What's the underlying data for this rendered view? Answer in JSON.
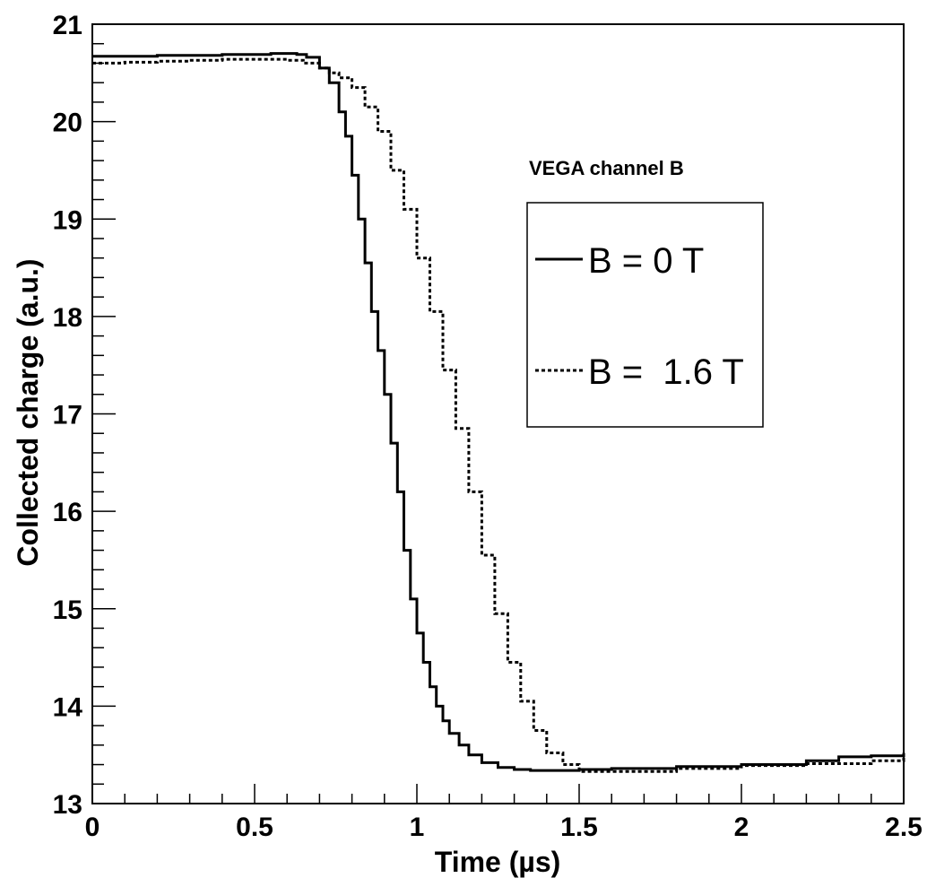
{
  "chart_data": {
    "type": "line",
    "xlabel": "Time (µs)",
    "ylabel": "Collected charge (a.u.)",
    "annotation": "VEGA channel B",
    "xlim": [
      0,
      2.5
    ],
    "ylim": [
      13,
      21
    ],
    "x_ticks": [
      "0",
      "0.5",
      "1",
      "1.5",
      "2",
      "2.5"
    ],
    "y_ticks": [
      "13",
      "14",
      "15",
      "16",
      "17",
      "18",
      "19",
      "20",
      "21"
    ],
    "grid": false,
    "legend_position": "right",
    "series": [
      {
        "name": "B = 0 T",
        "style": "solid",
        "color": "#000000",
        "x": [
          0,
          0.1,
          0.2,
          0.3,
          0.4,
          0.5,
          0.55,
          0.6,
          0.63,
          0.66,
          0.7,
          0.73,
          0.76,
          0.78,
          0.8,
          0.82,
          0.84,
          0.86,
          0.88,
          0.9,
          0.92,
          0.94,
          0.96,
          0.98,
          1.0,
          1.02,
          1.04,
          1.06,
          1.08,
          1.1,
          1.13,
          1.16,
          1.2,
          1.25,
          1.3,
          1.35,
          1.4,
          1.5,
          1.6,
          1.8,
          2.0,
          2.2,
          2.3,
          2.4,
          2.5
        ],
        "y": [
          20.67,
          20.67,
          20.68,
          20.68,
          20.69,
          20.69,
          20.7,
          20.7,
          20.69,
          20.66,
          20.55,
          20.4,
          20.1,
          19.85,
          19.45,
          19.0,
          18.55,
          18.05,
          17.65,
          17.2,
          16.7,
          16.2,
          15.6,
          15.1,
          14.75,
          14.45,
          14.2,
          14.0,
          13.85,
          13.72,
          13.6,
          13.5,
          13.42,
          13.37,
          13.35,
          13.34,
          13.34,
          13.35,
          13.36,
          13.38,
          13.4,
          13.44,
          13.48,
          13.49,
          13.52
        ]
      },
      {
        "name": "B =  1.6 T",
        "style": "dotted",
        "color": "#000000",
        "x": [
          0,
          0.1,
          0.2,
          0.3,
          0.4,
          0.5,
          0.55,
          0.6,
          0.65,
          0.7,
          0.73,
          0.76,
          0.8,
          0.84,
          0.88,
          0.92,
          0.96,
          1.0,
          1.04,
          1.08,
          1.12,
          1.16,
          1.2,
          1.24,
          1.28,
          1.32,
          1.36,
          1.4,
          1.45,
          1.5,
          1.6,
          1.8,
          2.0,
          2.2,
          2.4,
          2.5
        ],
        "y": [
          20.6,
          20.61,
          20.62,
          20.63,
          20.64,
          20.64,
          20.64,
          20.63,
          20.6,
          20.55,
          20.5,
          20.45,
          20.35,
          20.15,
          19.9,
          19.5,
          19.1,
          18.6,
          18.05,
          17.45,
          16.85,
          16.2,
          15.55,
          14.95,
          14.45,
          14.05,
          13.75,
          13.52,
          13.4,
          13.33,
          13.33,
          13.36,
          13.39,
          13.41,
          13.44,
          13.47
        ]
      }
    ]
  }
}
